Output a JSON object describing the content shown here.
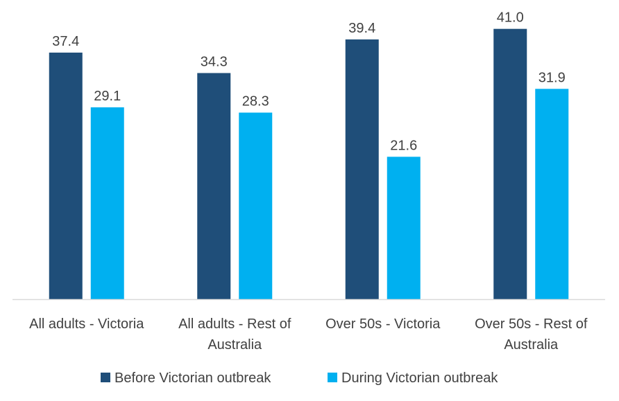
{
  "chart_data": {
    "type": "bar",
    "categories": [
      [
        "All adults - Victoria"
      ],
      [
        "All adults - Rest of",
        "Australia"
      ],
      [
        "Over 50s - Victoria"
      ],
      [
        "Over 50s - Rest of",
        "Australia"
      ]
    ],
    "series": [
      {
        "name": "Before Victorian outbreak",
        "color": "#1F4E79",
        "values": [
          37.4,
          34.3,
          39.4,
          41.0
        ]
      },
      {
        "name": "During Victorian outbreak",
        "color": "#00B0F0",
        "values": [
          29.1,
          28.3,
          21.6,
          31.9
        ]
      }
    ],
    "ylim": [
      0,
      45
    ],
    "grid": false,
    "legend": "bottom",
    "axis_color": "#D9D9D9"
  }
}
